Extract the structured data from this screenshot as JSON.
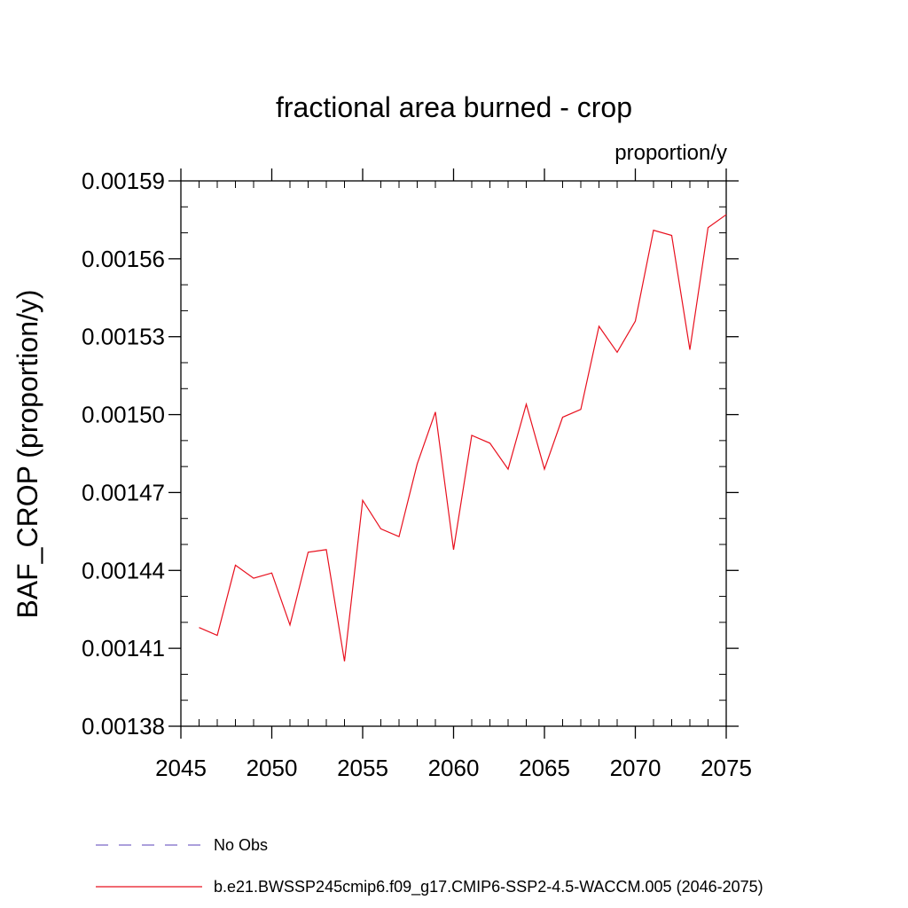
{
  "chart_data": {
    "type": "line",
    "title": "fractional area burned - crop",
    "units_label": "proportion/y",
    "ylabel": "BAF_CROP  (proportion/y)",
    "xlabel": "",
    "xlim": [
      2045,
      2075
    ],
    "ylim": [
      0.00138,
      0.00159
    ],
    "x_ticks": [
      2045,
      2050,
      2055,
      2060,
      2065,
      2070,
      2075
    ],
    "x_tick_labels": [
      "2045",
      "2050",
      "2055",
      "2060",
      "2065",
      "2070",
      "2075"
    ],
    "y_ticks": [
      0.00138,
      0.00141,
      0.00144,
      0.00147,
      0.0015,
      0.00153,
      0.00156,
      0.00159
    ],
    "y_tick_labels": [
      "0.00138",
      "0.00141",
      "0.00144",
      "0.00147",
      "0.00150",
      "0.00153",
      "0.00156",
      "0.00159"
    ],
    "y_minor_step": 1e-05,
    "x_minor_step": 1,
    "grid": false,
    "legend_position": "bottom-left",
    "series": [
      {
        "name": "No Obs",
        "color": "#7b68c8",
        "dash": "dashed",
        "x": [],
        "values": []
      },
      {
        "name": "b.e21.BWSSP245cmip6.f09_g17.CMIP6-SSP2-4.5-WACCM.005 (2046-2075)",
        "color": "#e8101e",
        "dash": "solid",
        "x": [
          2046,
          2047,
          2048,
          2049,
          2050,
          2051,
          2052,
          2053,
          2054,
          2055,
          2056,
          2057,
          2058,
          2059,
          2060,
          2061,
          2062,
          2063,
          2064,
          2065,
          2066,
          2067,
          2068,
          2069,
          2070,
          2071,
          2072,
          2073,
          2074,
          2075
        ],
        "values": [
          0.001418,
          0.001415,
          0.001442,
          0.001437,
          0.001439,
          0.001419,
          0.001447,
          0.001448,
          0.001405,
          0.001467,
          0.001456,
          0.001453,
          0.001481,
          0.001501,
          0.001448,
          0.001492,
          0.001489,
          0.001479,
          0.001504,
          0.001479,
          0.001499,
          0.001502,
          0.001534,
          0.001524,
          0.001536,
          0.001571,
          0.001569,
          0.001525,
          0.001572,
          0.001577
        ]
      }
    ]
  }
}
